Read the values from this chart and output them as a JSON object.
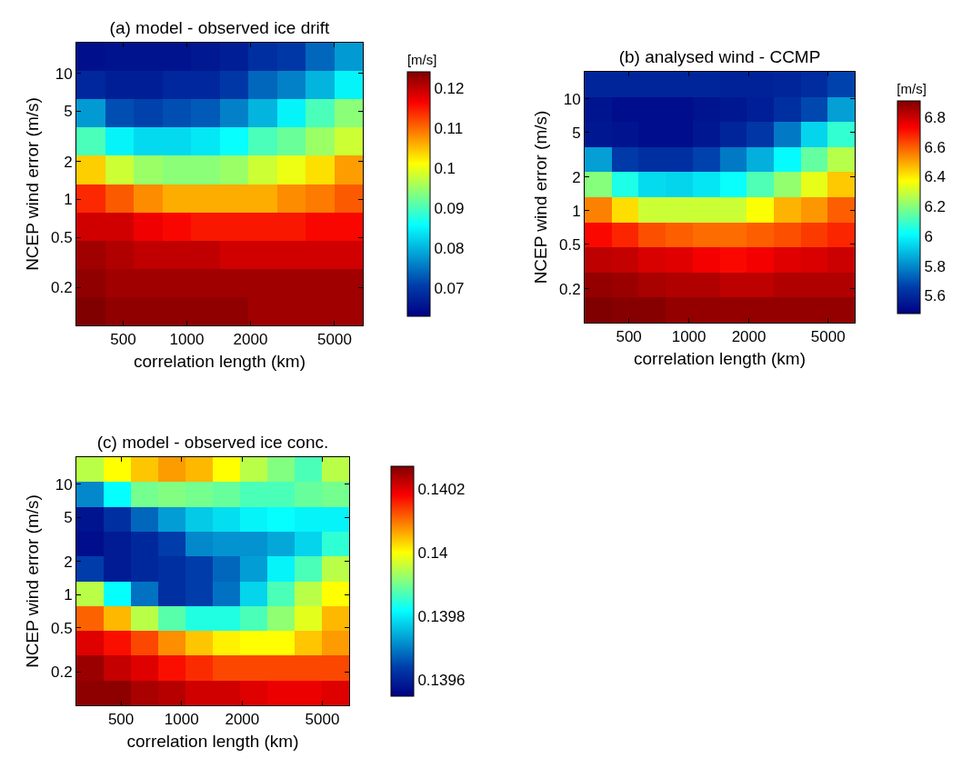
{
  "chart_data": [
    {
      "type": "heatmap",
      "title": "(a) model - observed ice drift",
      "xlabel": "correlation length (km)",
      "ylabel": "NCEP wind error (m/s)",
      "clabel": "[m/s]",
      "log": "xy",
      "xlim": [
        300,
        6800
      ],
      "xticks": [
        500,
        1000,
        2000,
        5000
      ],
      "ylim": [
        0.1,
        17.5
      ],
      "yticks": [
        0.2,
        0.5,
        1,
        2,
        5,
        10
      ],
      "clim": [
        0.063,
        0.124
      ],
      "cticks": [
        0.07,
        0.08,
        0.09,
        0.1,
        0.11,
        0.12
      ],
      "cells": [
        [
          0.065,
          0.0654,
          0.0654,
          0.0654,
          0.066,
          0.067,
          0.069,
          0.07,
          0.074,
          0.078
        ],
        [
          0.068,
          0.067,
          0.067,
          0.068,
          0.068,
          0.07,
          0.074,
          0.076,
          0.08,
          0.085
        ],
        [
          0.078,
          0.072,
          0.071,
          0.072,
          0.073,
          0.076,
          0.08,
          0.085,
          0.09,
          0.094
        ],
        [
          0.09,
          0.085,
          0.083,
          0.083,
          0.084,
          0.086,
          0.09,
          0.092,
          0.095,
          0.098
        ],
        [
          0.104,
          0.098,
          0.095,
          0.094,
          0.094,
          0.095,
          0.098,
          0.1,
          0.103,
          0.107
        ],
        [
          0.114,
          0.111,
          0.108,
          0.106,
          0.106,
          0.106,
          0.106,
          0.108,
          0.109,
          0.111
        ],
        [
          0.119,
          0.119,
          0.117,
          0.116,
          0.115,
          0.115,
          0.115,
          0.115,
          0.116,
          0.116
        ],
        [
          0.122,
          0.121,
          0.12,
          0.12,
          0.12,
          0.119,
          0.119,
          0.119,
          0.119,
          0.119
        ],
        [
          0.123,
          0.122,
          0.122,
          0.122,
          0.122,
          0.122,
          0.122,
          0.122,
          0.122,
          0.122
        ],
        [
          0.124,
          0.123,
          0.123,
          0.123,
          0.123,
          0.123,
          0.122,
          0.122,
          0.122,
          0.122
        ]
      ]
    },
    {
      "type": "heatmap",
      "title": "(b) analysed wind - CCMP",
      "xlabel": "correlation length (km)",
      "ylabel": "NCEP wind error (m/s)",
      "clabel": "[m/s]",
      "log": "xy",
      "xlim": [
        300,
        6800
      ],
      "xticks": [
        500,
        1000,
        2000,
        5000
      ],
      "ylim": [
        0.1,
        17.5
      ],
      "yticks": [
        0.2,
        0.5,
        1,
        2,
        5,
        10
      ],
      "clim": [
        5.48,
        6.91
      ],
      "cticks": [
        5.6,
        5.8,
        6,
        6.2,
        6.4,
        6.6,
        6.8
      ],
      "cells": [
        [
          5.59,
          5.59,
          5.59,
          5.59,
          5.59,
          5.58,
          5.58,
          5.59,
          5.61,
          5.67
        ],
        [
          5.54,
          5.52,
          5.52,
          5.52,
          5.54,
          5.55,
          5.57,
          5.62,
          5.68,
          5.84
        ],
        [
          5.55,
          5.54,
          5.52,
          5.52,
          5.55,
          5.59,
          5.64,
          5.77,
          5.94,
          6.08
        ],
        [
          5.84,
          5.65,
          5.62,
          5.62,
          5.67,
          5.77,
          5.87,
          6.01,
          6.15,
          6.27
        ],
        [
          6.2,
          6.05,
          5.95,
          5.94,
          5.97,
          6.02,
          6.12,
          6.22,
          6.34,
          6.45
        ],
        [
          6.55,
          6.42,
          6.3,
          6.3,
          6.3,
          6.3,
          6.37,
          6.48,
          6.52,
          6.6
        ],
        [
          6.72,
          6.68,
          6.62,
          6.6,
          6.58,
          6.58,
          6.6,
          6.62,
          6.65,
          6.68
        ],
        [
          6.82,
          6.81,
          6.78,
          6.77,
          6.74,
          6.72,
          6.74,
          6.77,
          6.78,
          6.8
        ],
        [
          6.88,
          6.87,
          6.85,
          6.84,
          6.84,
          6.82,
          6.82,
          6.84,
          6.84,
          6.84
        ],
        [
          6.91,
          6.9,
          6.9,
          6.88,
          6.88,
          6.88,
          6.88,
          6.88,
          6.88,
          6.88
        ]
      ]
    },
    {
      "type": "heatmap",
      "title": "(c) model - observed ice conc.",
      "xlabel": "correlation length (km)",
      "ylabel": "NCEP wind error (m/s)",
      "log": "xy",
      "xlim": [
        300,
        6800
      ],
      "xticks": [
        500,
        1000,
        2000,
        5000
      ],
      "ylim": [
        0.1,
        17.5
      ],
      "yticks": [
        0.2,
        0.5,
        1,
        2,
        5,
        10
      ],
      "clim": [
        0.13955,
        0.14027
      ],
      "cticks": [
        0.1396,
        0.1398,
        0.14,
        0.1402
      ],
      "cells": [
        [
          0.13995,
          0.14,
          0.14004,
          0.14007,
          0.14005,
          0.14,
          0.13995,
          0.13991,
          0.13987,
          0.13995
        ],
        [
          0.13971,
          0.13982,
          0.1399,
          0.13991,
          0.1399,
          0.13989,
          0.13987,
          0.13987,
          0.13989,
          0.1399
        ],
        [
          0.13958,
          0.13962,
          0.13968,
          0.13973,
          0.13977,
          0.13979,
          0.13981,
          0.13982,
          0.13981,
          0.13981
        ],
        [
          0.13957,
          0.13959,
          0.13961,
          0.13964,
          0.13971,
          0.13972,
          0.13972,
          0.13974,
          0.13978,
          0.13985
        ],
        [
          0.13964,
          0.13959,
          0.13961,
          0.13962,
          0.13964,
          0.13968,
          0.13973,
          0.13981,
          0.13987,
          0.13995
        ],
        [
          0.13995,
          0.13982,
          0.13969,
          0.13962,
          0.13964,
          0.13969,
          0.13978,
          0.13987,
          0.13995,
          0.14
        ],
        [
          0.14011,
          0.14005,
          0.13995,
          0.13988,
          0.13984,
          0.13984,
          0.13987,
          0.13992,
          0.13998,
          0.14005
        ],
        [
          0.1402,
          0.14017,
          0.14013,
          0.14008,
          0.14004,
          0.14001,
          0.14,
          0.14,
          0.14004,
          0.14007
        ],
        [
          0.14025,
          0.14022,
          0.1402,
          0.14017,
          0.14015,
          0.14013,
          0.14013,
          0.14013,
          0.14013,
          0.14013
        ],
        [
          0.14026,
          0.14026,
          0.14024,
          0.14023,
          0.14021,
          0.14021,
          0.1402,
          0.14019,
          0.14019,
          0.1402
        ]
      ]
    }
  ]
}
